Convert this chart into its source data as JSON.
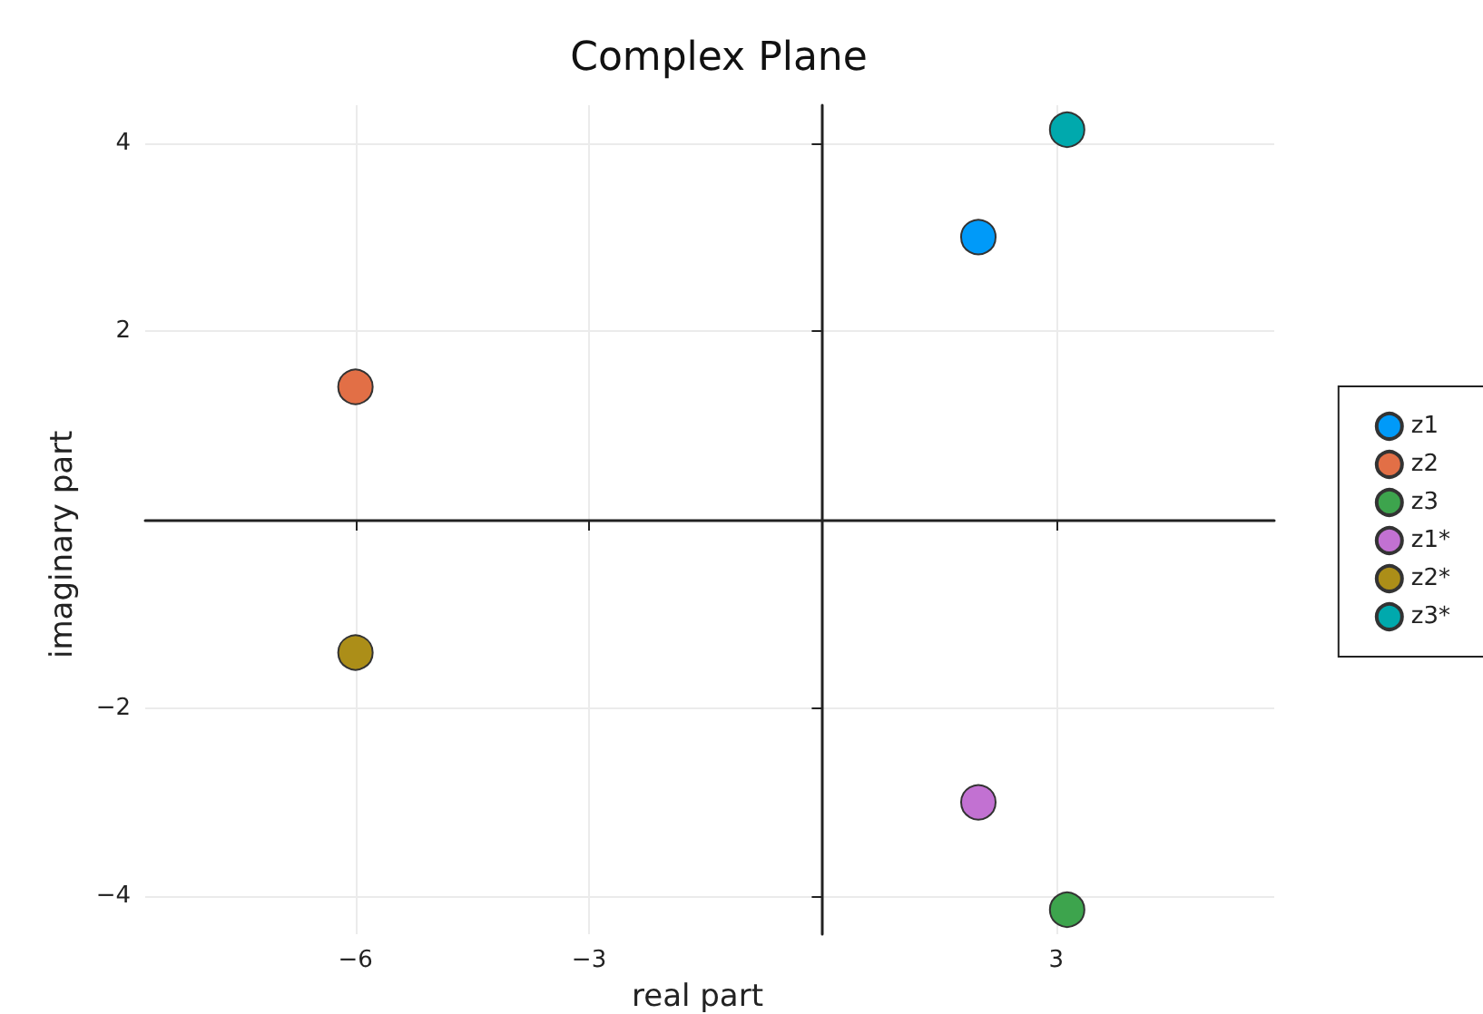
{
  "chart_data": {
    "type": "scatter",
    "title": "Complex Plane",
    "xlabel": "real part",
    "ylabel": "imaginary part",
    "series": [
      {
        "name": "z1",
        "color": "#009af9",
        "x": [
          2
        ],
        "values": [
          3
        ]
      },
      {
        "name": "z2",
        "color": "#e26f46",
        "x": [
          -6
        ],
        "values": [
          1.41
        ]
      },
      {
        "name": "z3",
        "color": "#3da44d",
        "x": [
          3.14
        ],
        "values": [
          -4.14
        ]
      },
      {
        "name": "z1*",
        "color": "#c271d2",
        "x": [
          2
        ],
        "values": [
          -3
        ]
      },
      {
        "name": "z2*",
        "color": "#ac8e18",
        "x": [
          -6
        ],
        "values": [
          -1.41
        ]
      },
      {
        "name": "z3*",
        "color": "#00a9ad",
        "x": [
          3.14
        ],
        "values": [
          4.14
        ]
      }
    ],
    "xlim": [
      -8.7,
      5.8
    ],
    "ylim": [
      -4.4,
      4.4
    ],
    "xticks": [
      -6,
      -3,
      3
    ],
    "yticks": [
      -4,
      -2,
      2,
      4
    ],
    "grid": true,
    "legend": "right",
    "marker": "circle"
  }
}
